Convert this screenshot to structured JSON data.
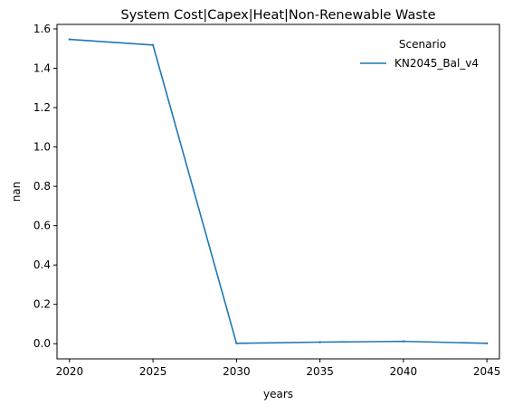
{
  "chart_data": {
    "type": "line",
    "title": "System Cost|Capex|Heat|Non-Renewable Waste",
    "xlabel": "years",
    "ylabel": "nan",
    "x": [
      2020,
      2025,
      2030,
      2035,
      2040,
      2045
    ],
    "xticks": [
      "2020",
      "2025",
      "2030",
      "2035",
      "2040",
      "2045"
    ],
    "yticks": [
      "0.0",
      "0.2",
      "0.4",
      "0.6",
      "0.8",
      "1.0",
      "1.2",
      "1.4",
      "1.6"
    ],
    "xlim": [
      2019.25,
      2045.75
    ],
    "ylim": [
      -0.077,
      1.623
    ],
    "grid": false,
    "legend": {
      "title": "Scenario",
      "placement": "top-right"
    },
    "series": [
      {
        "name": "KN2045_Bal_v4",
        "color": "#1f77b4",
        "values": [
          1.547,
          1.518,
          0.002,
          0.008,
          0.012,
          0.002
        ]
      }
    ]
  }
}
